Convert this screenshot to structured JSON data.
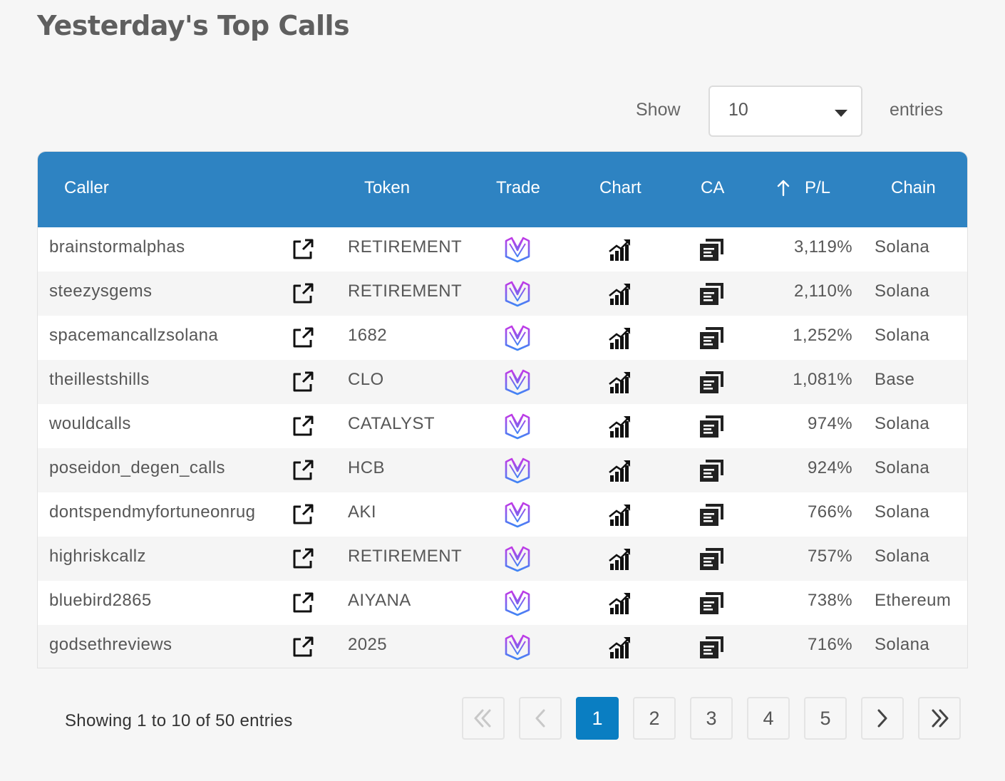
{
  "page": {
    "title": "Yesterday's Top Calls"
  },
  "length_control": {
    "show_label": "Show",
    "selected": "10",
    "entries_label": "entries"
  },
  "table": {
    "headers": {
      "caller": "Caller",
      "token": "Token",
      "trade": "Trade",
      "chart": "Chart",
      "ca": "CA",
      "pl": "P/L",
      "chain": "Chain"
    },
    "sort": {
      "column": "P/L",
      "direction": "descending"
    },
    "icons": {
      "link": "external-link-icon",
      "trade": "trade-logo-icon",
      "chart": "chart-bars-icon",
      "ca": "copy-document-icon"
    },
    "rows": [
      {
        "caller": "brainstormalphas",
        "token": "RETIREMENT",
        "pl": "3,119%",
        "chain": "Solana"
      },
      {
        "caller": "steezysgems",
        "token": "RETIREMENT",
        "pl": "2,110%",
        "chain": "Solana"
      },
      {
        "caller": "spacemancallzsolana",
        "token": "1682",
        "pl": "1,252%",
        "chain": "Solana"
      },
      {
        "caller": "theillestshills",
        "token": "CLO",
        "pl": "1,081%",
        "chain": "Base"
      },
      {
        "caller": "wouldcalls",
        "token": "CATALYST",
        "pl": "974%",
        "chain": "Solana"
      },
      {
        "caller": "poseidon_degen_calls",
        "token": "HCB",
        "pl": "924%",
        "chain": "Solana"
      },
      {
        "caller": "dontspendmyfortuneonrug",
        "token": "AKI",
        "pl": "766%",
        "chain": "Solana"
      },
      {
        "caller": "highriskcallz",
        "token": "RETIREMENT",
        "pl": "757%",
        "chain": "Solana"
      },
      {
        "caller": "bluebird2865",
        "token": "AIYANA",
        "pl": "738%",
        "chain": "Ethereum"
      },
      {
        "caller": "godsethreviews",
        "token": "2025",
        "pl": "716%",
        "chain": "Solana"
      }
    ]
  },
  "info": "Showing 1 to 10 of 50 entries",
  "pagination": {
    "pages": [
      "1",
      "2",
      "3",
      "4",
      "5"
    ],
    "current": "1",
    "first_icon": "double-chevron-left-icon",
    "prev_icon": "chevron-left-icon",
    "next_icon": "chevron-right-icon",
    "last_icon": "double-chevron-right-icon"
  },
  "colors": {
    "header": "#2e83c2",
    "active_page": "#0a7ec2",
    "trade_logo_top": "#c13ae6",
    "trade_logo_bottom": "#3f86f5"
  }
}
